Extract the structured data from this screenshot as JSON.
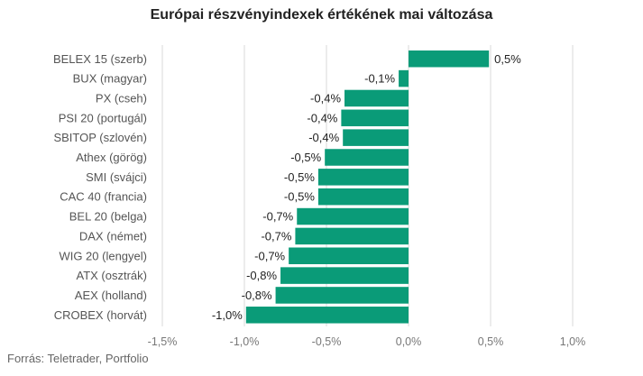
{
  "title": "Európai részvényindexek értékének mai változása",
  "source": "Forrás: Teletrader, Portfolio",
  "colors": {
    "bar": "#0a9b78",
    "grid": "#d9d9d9"
  },
  "chart_data": {
    "type": "bar",
    "orientation": "horizontal",
    "title": "Európai részvényindexek értékének mai változása",
    "categories": [
      "BELEX 15 (szerb)",
      "BUX (magyar)",
      "PX (cseh)",
      "PSI 20 (portugál)",
      "SBITOP (szlovén)",
      "Athex (görög)",
      "SMI (svájci)",
      "CAC 40 (francia)",
      "BEL 20 (belga)",
      "DAX (német)",
      "WIG 20 (lengyel)",
      "ATX (osztrák)",
      "AEX (holland)",
      "CROBEX (horvát)"
    ],
    "values": [
      0.49,
      -0.06,
      -0.39,
      -0.41,
      -0.4,
      -0.51,
      -0.55,
      -0.55,
      -0.68,
      -0.69,
      -0.73,
      -0.78,
      -0.81,
      -0.99
    ],
    "value_labels": [
      "0,5%",
      "-0,1%",
      "-0,4%",
      "-0,4%",
      "-0,4%",
      "-0,5%",
      "-0,5%",
      "-0,5%",
      "-0,7%",
      "-0,7%",
      "-0,7%",
      "-0,8%",
      "-0,8%",
      "-1,0%"
    ],
    "x_ticks": [
      -1.5,
      -1.0,
      -0.5,
      0.0,
      0.5,
      1.0
    ],
    "x_tick_labels": [
      "-1,5%",
      "-1,0%",
      "-0,5%",
      "0,0%",
      "0,5%",
      "1,0%"
    ],
    "xlim": [
      -1.5,
      1.0
    ],
    "grid": true,
    "legend": "none"
  }
}
